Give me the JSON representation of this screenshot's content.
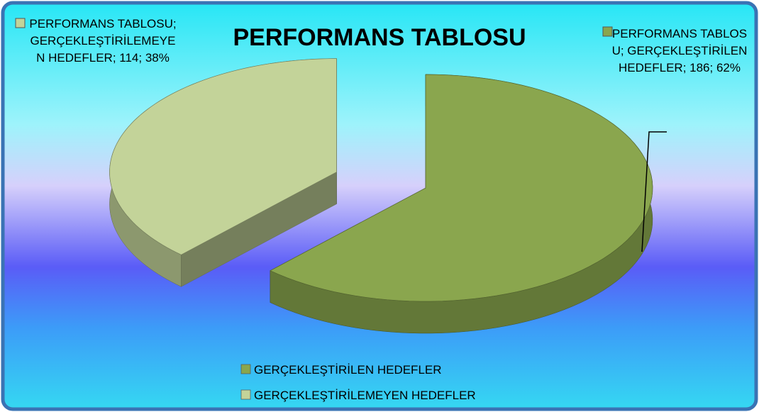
{
  "chart_data": {
    "type": "pie3d",
    "title": "PERFORMANS TABLOSU",
    "categories": [
      "GERÇEKLEŞTİRİLEN HEDEFLER",
      "GERÇEKLEŞTİRİLEMEYEN HEDEFLER"
    ],
    "values": [
      186,
      114
    ],
    "value_labels": [
      "PERFORMANS TABLOSU; GERÇEKLEŞTİRİLEN HEDEFLER; 186; 62%",
      "PERFORMANS TABLOSU; GERÇEKLEŞTİRİLEMEYEN HEDEFLER; 114; 38%"
    ],
    "colors": [
      "#8aa64e",
      "#c3d399"
    ]
  }
}
